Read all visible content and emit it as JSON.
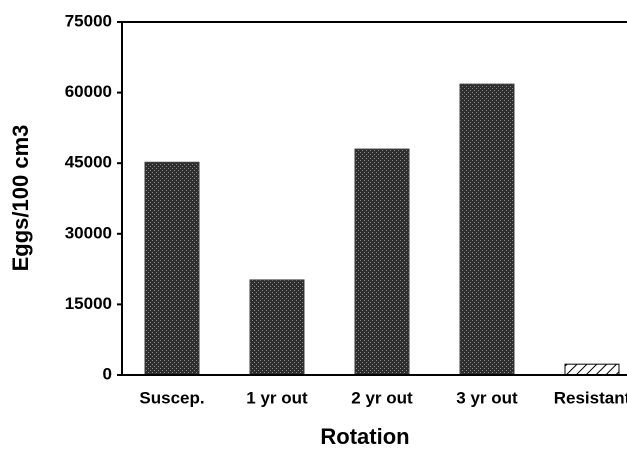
{
  "chart_data": {
    "type": "bar",
    "categories": [
      "Suscep.",
      "1 yr out",
      "2 yr out",
      "3 yr out",
      "Resistant"
    ],
    "values": [
      45200,
      20200,
      48000,
      61800,
      2300
    ],
    "bar_styles": [
      "stipple",
      "stipple",
      "stipple",
      "stipple",
      "hatch"
    ],
    "color": "#3a3a3a",
    "ylim": [
      0,
      75000
    ],
    "yticks": [
      0,
      15000,
      30000,
      45000,
      60000,
      75000
    ],
    "ylabel": "Eggs/100 cm3",
    "xlabel": "Rotation",
    "grid": false
  }
}
